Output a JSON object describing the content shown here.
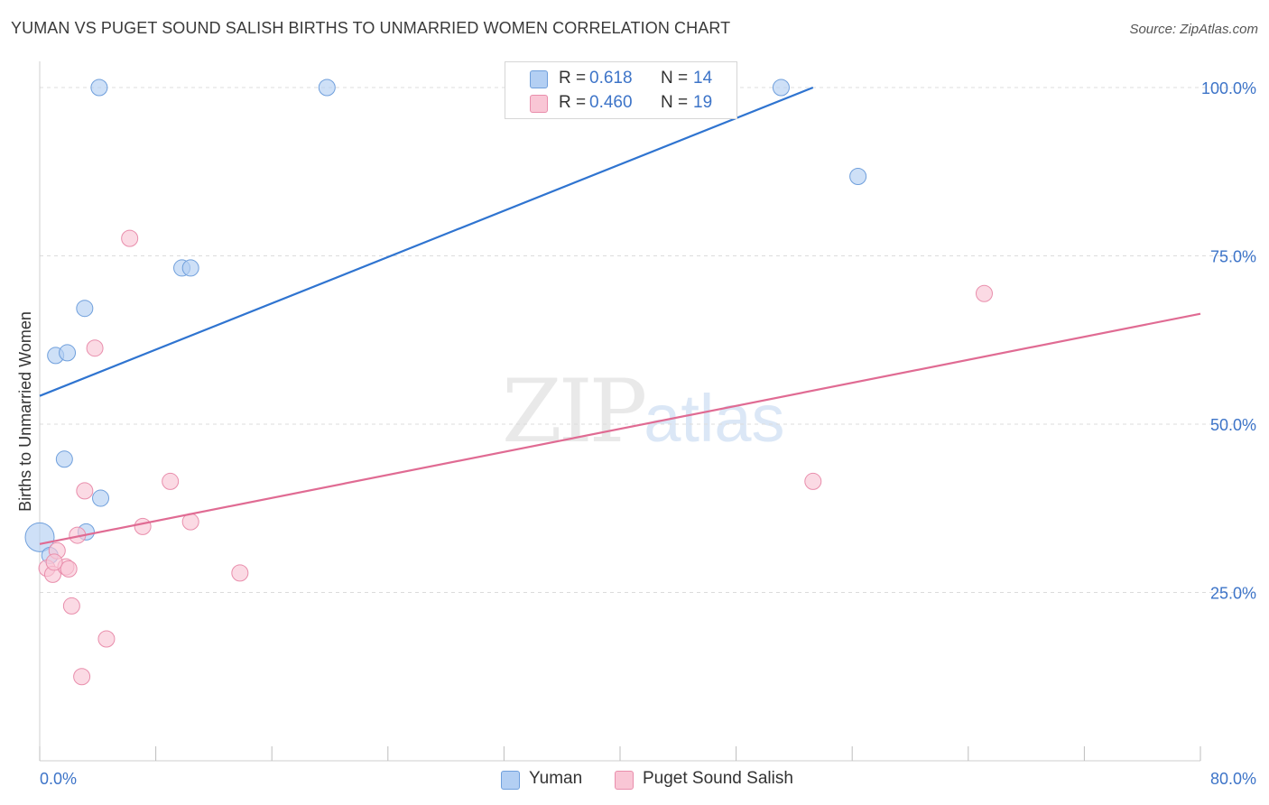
{
  "title": "YUMAN VS PUGET SOUND SALISH BIRTHS TO UNMARRIED WOMEN CORRELATION CHART",
  "source": "Source: ZipAtlas.com",
  "watermark": {
    "zip": "ZIP",
    "atlas": "atlas"
  },
  "legend": {
    "rows": [
      {
        "r_label": "R =",
        "r_value": "0.618",
        "n_label": "N =",
        "n_value": "14",
        "color": "#b3cff3",
        "border": "#6f9fdc"
      },
      {
        "r_label": "R =",
        "r_value": "0.460",
        "n_label": "N =",
        "n_value": "19",
        "color": "#f9c6d5",
        "border": "#e98eac"
      }
    ]
  },
  "bottom_legend": [
    {
      "label": "Yuman",
      "color": "#b3cff3",
      "border": "#6f9fdc"
    },
    {
      "label": "Puget Sound Salish",
      "color": "#f9c6d5",
      "border": "#e98eac"
    }
  ],
  "chart_data": {
    "type": "scatter",
    "title": "YUMAN VS PUGET SOUND SALISH BIRTHS TO UNMARRIED WOMEN CORRELATION CHART",
    "xlabel": "",
    "ylabel": "Births to Unmarried Women",
    "xlim": [
      0,
      80
    ],
    "ylim": [
      0,
      102
    ],
    "x_tick_labels": [
      "0.0%",
      "80.0%"
    ],
    "y_ticks": [
      25,
      50,
      75,
      100
    ],
    "y_tick_labels": [
      "25.0%",
      "50.0%",
      "75.0%",
      "100.0%"
    ],
    "grid": true,
    "series": [
      {
        "name": "Yuman",
        "color": "#6f9fdc",
        "fill": "#b3cff3",
        "line_color": "#2f74d0",
        "points": [
          [
            0.0,
            33.2,
            16
          ],
          [
            0.7,
            30.5,
            9
          ],
          [
            1.1,
            60.2,
            9
          ],
          [
            1.9,
            60.6,
            9
          ],
          [
            1.7,
            44.8,
            9
          ],
          [
            3.1,
            67.2,
            9
          ],
          [
            4.2,
            39.0,
            9
          ],
          [
            3.2,
            34.0,
            9
          ],
          [
            4.1,
            100.0,
            9
          ],
          [
            9.8,
            73.2,
            9
          ],
          [
            10.4,
            73.2,
            9
          ],
          [
            19.8,
            100.0,
            9
          ],
          [
            51.1,
            100.0,
            9
          ],
          [
            56.4,
            86.8,
            9
          ]
        ],
        "trend": {
          "x": [
            0,
            53.3
          ],
          "y": [
            54.2,
            100.0
          ]
        }
      },
      {
        "name": "Puget Sound Salish",
        "color": "#e98eac",
        "fill": "#f9c6d5",
        "line_color": "#e06b93",
        "points": [
          [
            0.5,
            28.6,
            9
          ],
          [
            0.9,
            27.7,
            9
          ],
          [
            1.2,
            31.2,
            9
          ],
          [
            1.8,
            28.8,
            9
          ],
          [
            2.0,
            28.5,
            9
          ],
          [
            2.2,
            23.0,
            9
          ],
          [
            2.6,
            33.5,
            9
          ],
          [
            2.9,
            12.5,
            9
          ],
          [
            3.1,
            40.1,
            9
          ],
          [
            4.6,
            18.1,
            9
          ],
          [
            3.8,
            61.3,
            9
          ],
          [
            6.2,
            77.6,
            9
          ],
          [
            7.1,
            34.8,
            9
          ],
          [
            9.0,
            41.5,
            9
          ],
          [
            10.4,
            35.5,
            9
          ],
          [
            13.8,
            27.9,
            9
          ],
          [
            53.3,
            41.5,
            9
          ],
          [
            65.1,
            69.4,
            9
          ],
          [
            1.0,
            29.5,
            9
          ]
        ],
        "trend": {
          "x": [
            0,
            80
          ],
          "y": [
            32.2,
            66.4
          ]
        }
      }
    ]
  }
}
